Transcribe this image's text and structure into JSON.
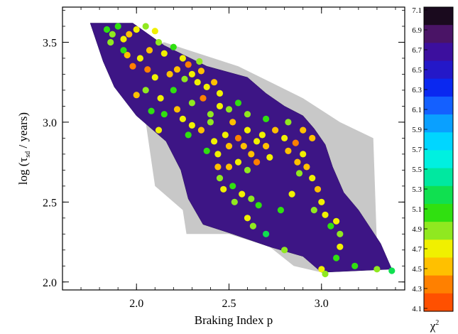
{
  "chart_data": {
    "type": "scatter",
    "xlabel": "Braking Index p",
    "ylabel_main": "log (τ",
    "ylabel_sub": "sd",
    "ylabel_tail": " / years)",
    "xlim": [
      1.6,
      3.45
    ],
    "ylim": [
      1.95,
      3.72
    ],
    "xticks": [
      2.0,
      2.5,
      3.0
    ],
    "xtick_labels": [
      "2.0",
      "2.5",
      "3.0"
    ],
    "yticks": [
      2.0,
      2.5,
      3.0,
      3.5
    ],
    "ytick_labels": [
      "2.0",
      "2.5",
      "3.0",
      "3.5"
    ],
    "background_region_color": "#c8c8c8",
    "colorbar": {
      "label": "χ",
      "label_sup": "2",
      "range": [
        4.1,
        7.1
      ],
      "tick_labels": [
        "7.1",
        "6.9",
        "6.7",
        "6.5",
        "6.3",
        "6.1",
        "5.9",
        "5.7",
        "5.5",
        "5.3",
        "5.1",
        "4.9",
        "4.7",
        "4.5",
        "4.3",
        "4.1"
      ],
      "colors_top_to_bottom": [
        "#1a0a1e",
        "#4a1466",
        "#3c0f9e",
        "#2418c8",
        "#0a28f0",
        "#1460ff",
        "#0aa0ff",
        "#00d6ff",
        "#00f0e0",
        "#00e8a0",
        "#10e050",
        "#30e010",
        "#90e820",
        "#f0f000",
        "#ffc000",
        "#ff8000",
        "#ff5000"
      ]
    },
    "contour_region": [
      [
        1.75,
        3.62
      ],
      [
        1.98,
        3.62
      ],
      [
        2.15,
        3.48
      ],
      [
        2.38,
        3.35
      ],
      [
        2.6,
        3.28
      ],
      [
        2.7,
        3.18
      ],
      [
        2.8,
        3.1
      ],
      [
        2.9,
        3.04
      ],
      [
        2.96,
        2.96
      ],
      [
        3.02,
        2.86
      ],
      [
        3.06,
        2.72
      ],
      [
        3.12,
        2.56
      ],
      [
        3.2,
        2.45
      ],
      [
        3.32,
        2.24
      ],
      [
        3.38,
        2.08
      ],
      [
        3.0,
        2.06
      ],
      [
        2.9,
        2.16
      ],
      [
        2.72,
        2.22
      ],
      [
        2.52,
        2.3
      ],
      [
        2.36,
        2.36
      ],
      [
        2.28,
        2.52
      ],
      [
        2.24,
        2.7
      ],
      [
        2.16,
        2.88
      ],
      [
        2.0,
        3.04
      ],
      [
        1.88,
        3.22
      ],
      [
        1.82,
        3.38
      ]
    ],
    "gray_region": [
      [
        1.85,
        3.4
      ],
      [
        2.05,
        3.0
      ],
      [
        2.1,
        2.6
      ],
      [
        2.25,
        2.45
      ],
      [
        2.27,
        2.3
      ],
      [
        2.5,
        2.3
      ],
      [
        2.72,
        2.22
      ],
      [
        2.85,
        2.1
      ],
      [
        3.0,
        2.06
      ],
      [
        3.3,
        2.22
      ],
      [
        3.28,
        2.9
      ],
      [
        3.1,
        3.0
      ],
      [
        2.9,
        3.15
      ],
      [
        2.55,
        3.35
      ],
      [
        2.15,
        3.5
      ]
    ],
    "points": [
      {
        "x": 1.84,
        "y": 3.58,
        "v": 5.0
      },
      {
        "x": 1.87,
        "y": 3.55,
        "v": 4.8
      },
      {
        "x": 1.9,
        "y": 3.6,
        "v": 5.1
      },
      {
        "x": 1.93,
        "y": 3.52,
        "v": 4.6
      },
      {
        "x": 1.86,
        "y": 3.5,
        "v": 4.9
      },
      {
        "x": 1.96,
        "y": 3.55,
        "v": 4.5
      },
      {
        "x": 2.0,
        "y": 3.58,
        "v": 4.7
      },
      {
        "x": 2.05,
        "y": 3.6,
        "v": 4.8
      },
      {
        "x": 2.1,
        "y": 3.57,
        "v": 4.6
      },
      {
        "x": 2.12,
        "y": 3.5,
        "v": 4.9
      },
      {
        "x": 1.95,
        "y": 3.42,
        "v": 4.4
      },
      {
        "x": 1.98,
        "y": 3.35,
        "v": 4.2
      },
      {
        "x": 2.02,
        "y": 3.4,
        "v": 4.6
      },
      {
        "x": 1.93,
        "y": 3.45,
        "v": 5.0
      },
      {
        "x": 2.07,
        "y": 3.45,
        "v": 4.5
      },
      {
        "x": 2.15,
        "y": 3.43,
        "v": 4.7
      },
      {
        "x": 2.2,
        "y": 3.47,
        "v": 5.1
      },
      {
        "x": 2.25,
        "y": 3.4,
        "v": 4.6
      },
      {
        "x": 2.22,
        "y": 3.33,
        "v": 4.5
      },
      {
        "x": 2.28,
        "y": 3.36,
        "v": 4.3
      },
      {
        "x": 2.3,
        "y": 3.3,
        "v": 4.6
      },
      {
        "x": 2.35,
        "y": 3.32,
        "v": 4.5
      },
      {
        "x": 2.33,
        "y": 3.25,
        "v": 4.7
      },
      {
        "x": 2.26,
        "y": 3.27,
        "v": 4.9
      },
      {
        "x": 2.18,
        "y": 3.3,
        "v": 4.4
      },
      {
        "x": 2.1,
        "y": 3.28,
        "v": 4.6
      },
      {
        "x": 2.05,
        "y": 3.2,
        "v": 4.9
      },
      {
        "x": 2.0,
        "y": 3.17,
        "v": 4.5
      },
      {
        "x": 2.13,
        "y": 3.15,
        "v": 4.6
      },
      {
        "x": 2.2,
        "y": 3.2,
        "v": 5.0
      },
      {
        "x": 2.38,
        "y": 3.22,
        "v": 4.6
      },
      {
        "x": 2.42,
        "y": 3.25,
        "v": 4.5
      },
      {
        "x": 2.45,
        "y": 3.18,
        "v": 4.7
      },
      {
        "x": 2.36,
        "y": 3.15,
        "v": 4.3
      },
      {
        "x": 2.3,
        "y": 3.12,
        "v": 4.8
      },
      {
        "x": 2.22,
        "y": 3.08,
        "v": 4.5
      },
      {
        "x": 2.25,
        "y": 3.02,
        "v": 4.6
      },
      {
        "x": 2.15,
        "y": 3.05,
        "v": 5.1
      },
      {
        "x": 2.3,
        "y": 2.98,
        "v": 4.6
      },
      {
        "x": 2.35,
        "y": 2.95,
        "v": 4.5
      },
      {
        "x": 2.4,
        "y": 3.05,
        "v": 4.9
      },
      {
        "x": 2.45,
        "y": 3.1,
        "v": 4.6
      },
      {
        "x": 2.5,
        "y": 3.08,
        "v": 4.8
      },
      {
        "x": 2.52,
        "y": 3.0,
        "v": 4.5
      },
      {
        "x": 2.48,
        "y": 2.92,
        "v": 4.7
      },
      {
        "x": 2.42,
        "y": 2.88,
        "v": 4.6
      },
      {
        "x": 2.38,
        "y": 2.82,
        "v": 5.0
      },
      {
        "x": 2.44,
        "y": 2.8,
        "v": 4.6
      },
      {
        "x": 2.5,
        "y": 2.85,
        "v": 4.5
      },
      {
        "x": 2.55,
        "y": 2.9,
        "v": 4.3
      },
      {
        "x": 2.6,
        "y": 2.95,
        "v": 4.6
      },
      {
        "x": 2.58,
        "y": 2.85,
        "v": 4.5
      },
      {
        "x": 2.62,
        "y": 2.8,
        "v": 4.4
      },
      {
        "x": 2.65,
        "y": 2.88,
        "v": 4.6
      },
      {
        "x": 2.68,
        "y": 2.92,
        "v": 4.7
      },
      {
        "x": 2.7,
        "y": 2.85,
        "v": 4.5
      },
      {
        "x": 2.72,
        "y": 2.78,
        "v": 4.6
      },
      {
        "x": 2.65,
        "y": 2.75,
        "v": 4.3
      },
      {
        "x": 2.6,
        "y": 2.7,
        "v": 4.9
      },
      {
        "x": 2.55,
        "y": 2.75,
        "v": 4.6
      },
      {
        "x": 2.5,
        "y": 2.72,
        "v": 4.5
      },
      {
        "x": 2.45,
        "y": 2.65,
        "v": 4.8
      },
      {
        "x": 2.47,
        "y": 2.58,
        "v": 4.6
      },
      {
        "x": 2.52,
        "y": 2.6,
        "v": 5.0
      },
      {
        "x": 2.57,
        "y": 2.55,
        "v": 4.7
      },
      {
        "x": 2.62,
        "y": 2.52,
        "v": 4.9
      },
      {
        "x": 2.66,
        "y": 2.48,
        "v": 5.1
      },
      {
        "x": 2.6,
        "y": 2.4,
        "v": 4.7
      },
      {
        "x": 2.63,
        "y": 2.35,
        "v": 4.9
      },
      {
        "x": 2.7,
        "y": 2.3,
        "v": 5.2
      },
      {
        "x": 2.75,
        "y": 2.95,
        "v": 4.5
      },
      {
        "x": 2.8,
        "y": 2.9,
        "v": 4.6
      },
      {
        "x": 2.82,
        "y": 2.82,
        "v": 4.5
      },
      {
        "x": 2.86,
        "y": 2.87,
        "v": 4.3
      },
      {
        "x": 2.9,
        "y": 2.8,
        "v": 4.6
      },
      {
        "x": 2.92,
        "y": 2.72,
        "v": 4.5
      },
      {
        "x": 2.88,
        "y": 2.68,
        "v": 4.8
      },
      {
        "x": 2.95,
        "y": 2.65,
        "v": 4.6
      },
      {
        "x": 2.98,
        "y": 2.58,
        "v": 4.5
      },
      {
        "x": 3.0,
        "y": 2.5,
        "v": 4.7
      },
      {
        "x": 2.96,
        "y": 2.45,
        "v": 4.9
      },
      {
        "x": 3.02,
        "y": 2.42,
        "v": 4.6
      },
      {
        "x": 3.05,
        "y": 2.35,
        "v": 5.0
      },
      {
        "x": 3.08,
        "y": 2.38,
        "v": 4.7
      },
      {
        "x": 3.1,
        "y": 2.3,
        "v": 4.8
      },
      {
        "x": 3.1,
        "y": 2.22,
        "v": 4.6
      },
      {
        "x": 3.08,
        "y": 2.15,
        "v": 5.0
      },
      {
        "x": 3.0,
        "y": 2.08,
        "v": 4.7
      },
      {
        "x": 3.02,
        "y": 2.05,
        "v": 4.9
      },
      {
        "x": 3.18,
        "y": 2.1,
        "v": 5.1
      },
      {
        "x": 3.3,
        "y": 2.08,
        "v": 4.9
      },
      {
        "x": 3.38,
        "y": 2.07,
        "v": 5.2
      },
      {
        "x": 2.8,
        "y": 2.2,
        "v": 4.9
      },
      {
        "x": 2.78,
        "y": 2.45,
        "v": 5.1
      },
      {
        "x": 2.84,
        "y": 2.55,
        "v": 4.7
      },
      {
        "x": 2.9,
        "y": 2.95,
        "v": 4.5
      },
      {
        "x": 2.95,
        "y": 2.9,
        "v": 4.4
      },
      {
        "x": 2.82,
        "y": 3.0,
        "v": 4.9
      },
      {
        "x": 2.7,
        "y": 3.02,
        "v": 5.0
      },
      {
        "x": 2.6,
        "y": 3.05,
        "v": 4.8
      },
      {
        "x": 2.55,
        "y": 3.12,
        "v": 5.1
      },
      {
        "x": 2.4,
        "y": 3.0,
        "v": 4.9
      },
      {
        "x": 2.28,
        "y": 2.92,
        "v": 5.0
      },
      {
        "x": 2.12,
        "y": 2.95,
        "v": 4.6
      },
      {
        "x": 2.08,
        "y": 3.07,
        "v": 5.1
      },
      {
        "x": 2.34,
        "y": 3.38,
        "v": 4.8
      },
      {
        "x": 2.06,
        "y": 3.33,
        "v": 4.3
      },
      {
        "x": 2.44,
        "y": 2.72,
        "v": 4.5
      },
      {
        "x": 2.53,
        "y": 2.5,
        "v": 4.8
      },
      {
        "x": 2.87,
        "y": 2.75,
        "v": 4.4
      }
    ]
  }
}
